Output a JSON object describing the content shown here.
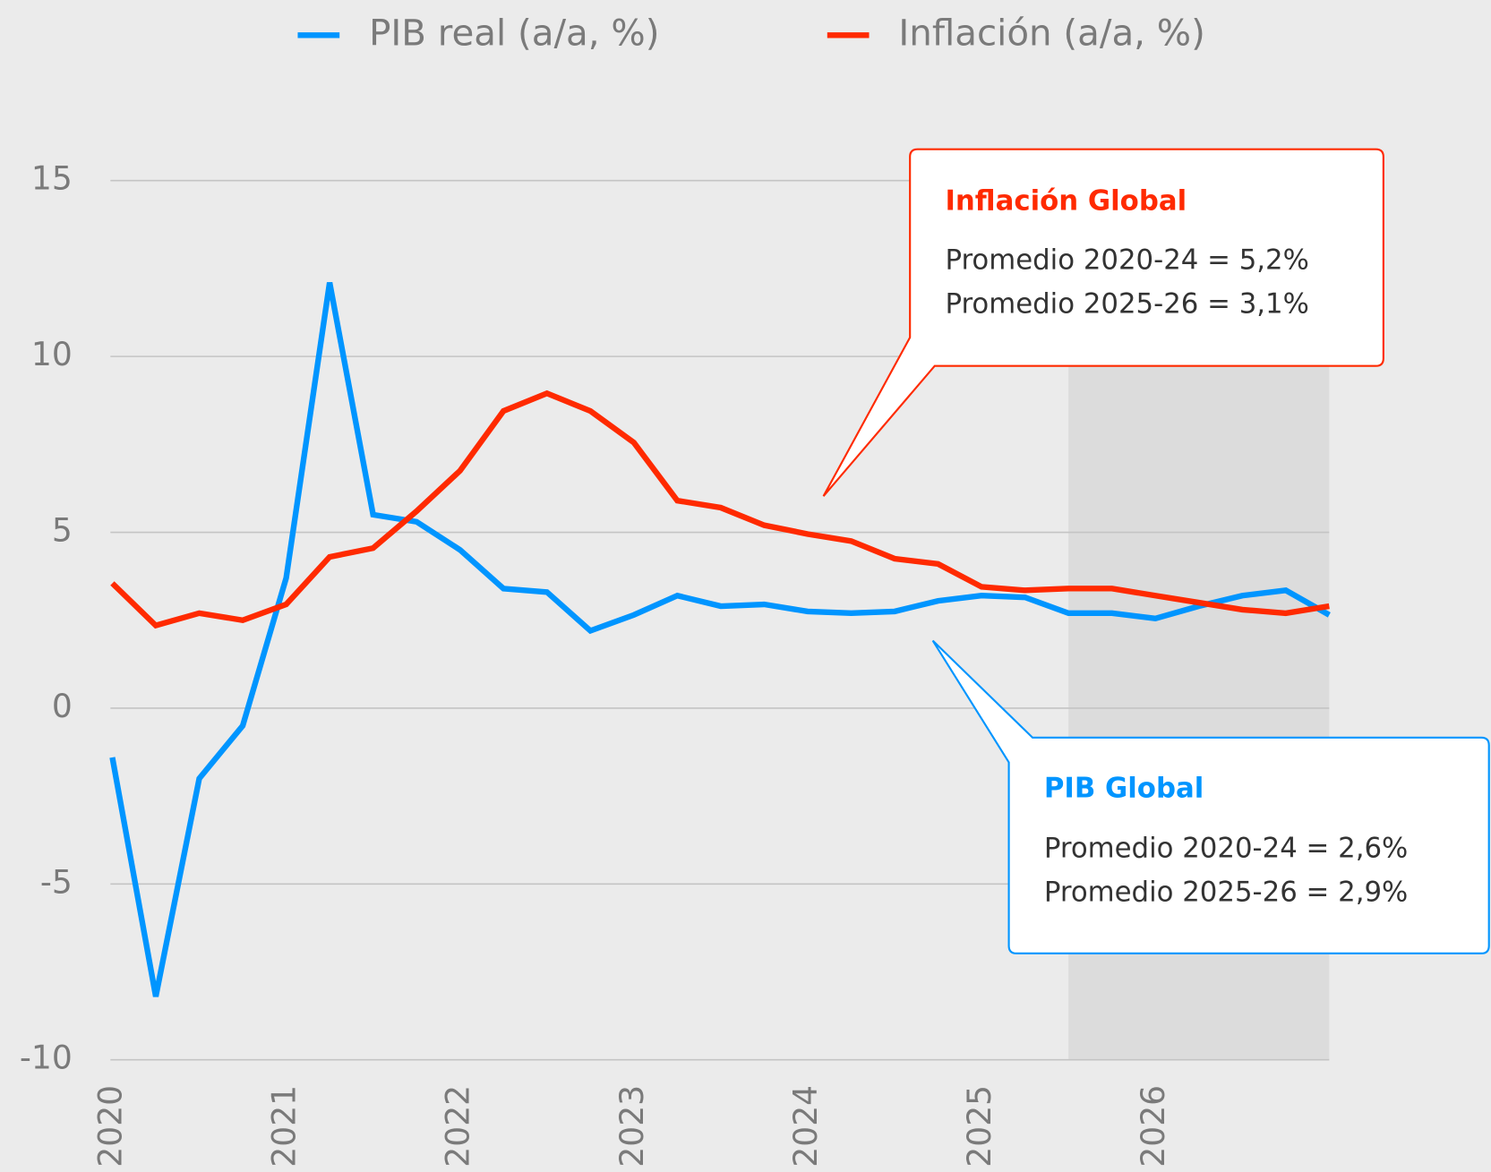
{
  "chart_data": {
    "type": "line",
    "x": [
      2020,
      2020.25,
      2020.5,
      2020.75,
      2021,
      2021.25,
      2021.5,
      2021.75,
      2022,
      2022.25,
      2022.5,
      2022.75,
      2023,
      2023.25,
      2023.5,
      2023.75,
      2024,
      2024.25,
      2024.5,
      2024.75,
      2025,
      2025.25,
      2025.5,
      2025.75,
      2026,
      2026.25,
      2026.5,
      2026.75,
      2027
    ],
    "series": [
      {
        "name": "PIB real (a/a, %)",
        "color": "#0095ff",
        "values": [
          -1.4,
          -8.2,
          -2.0,
          -0.5,
          3.7,
          12.1,
          5.5,
          5.3,
          4.5,
          3.4,
          3.3,
          2.2,
          2.65,
          3.2,
          2.9,
          2.95,
          2.75,
          2.7,
          2.75,
          3.05,
          3.2,
          3.15,
          2.7,
          2.7,
          2.55,
          2.9,
          3.2,
          3.35,
          2.65
        ]
      },
      {
        "name": "Inflación (a/a, %)",
        "color": "#ff2a00",
        "values": [
          3.55,
          2.35,
          2.7,
          2.5,
          2.95,
          4.3,
          4.55,
          5.6,
          6.75,
          8.45,
          8.95,
          8.45,
          7.55,
          5.9,
          5.7,
          5.2,
          4.95,
          4.75,
          4.25,
          4.1,
          3.45,
          3.35,
          3.4,
          3.4,
          3.2,
          3.0,
          2.8,
          2.7,
          2.9
        ]
      }
    ],
    "xlim": [
      2020,
      2027
    ],
    "xticks": [
      2020,
      2021,
      2022,
      2023,
      2024,
      2025,
      2026
    ],
    "ylim": [
      -10,
      15
    ],
    "yticks": [
      -10,
      -5,
      0,
      5,
      10,
      15
    ],
    "grid": true,
    "shaded_range": [
      2025.5,
      2027
    ],
    "annotations": [
      {
        "title": "Inflación Global",
        "color": "#ff2a00",
        "lines": [
          "Promedio 2020-24 = 5,2%",
          "Promedio 2025-26 = 3,1%"
        ]
      },
      {
        "title": "PIB Global",
        "color": "#0095ff",
        "lines": [
          "Promedio 2020-24 = 2,6%",
          "Promedio 2025-26 = 2,9%"
        ]
      }
    ]
  }
}
